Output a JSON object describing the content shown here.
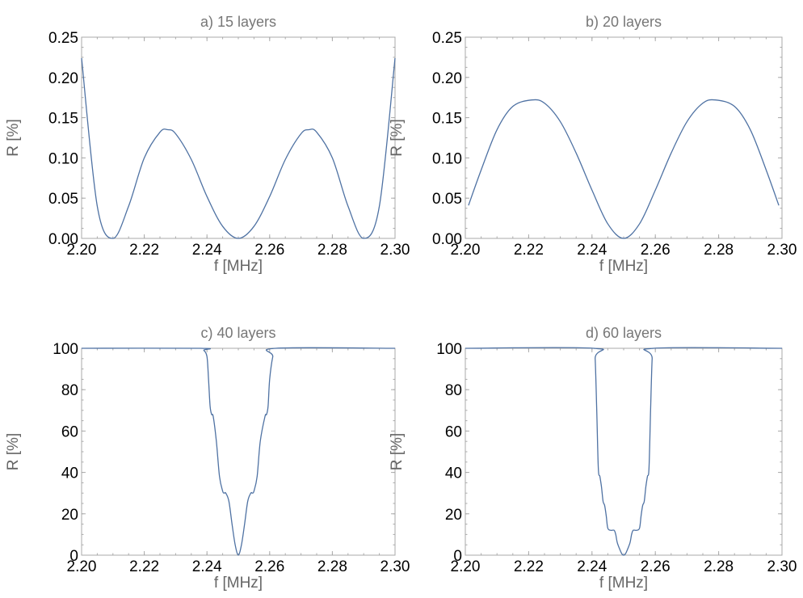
{
  "style": {
    "line_color": "#4f72a3",
    "frame_color": "#aaaaaa",
    "label_color": "#666666"
  },
  "chart_data": [
    {
      "type": "line",
      "title": "a) 15 layers",
      "xlabel": "f [MHz]",
      "ylabel": "R [%]",
      "xlim": [
        2.2,
        2.3
      ],
      "ylim": [
        0,
        0.25
      ],
      "xticks": [
        "2.20",
        "2.22",
        "2.24",
        "2.26",
        "2.28",
        "2.30"
      ],
      "yticks": [
        "0.00",
        "0.05",
        "0.10",
        "0.15",
        "0.20",
        "0.25"
      ],
      "grid": false,
      "series": [
        {
          "x": [
            2.2,
            2.205,
            2.21,
            2.215,
            2.22,
            2.225,
            2.2275,
            2.23,
            2.235,
            2.24,
            2.245,
            2.25,
            2.255,
            2.26,
            2.265,
            2.27,
            2.2725,
            2.275,
            2.28,
            2.285,
            2.29,
            2.295,
            2.3
          ],
          "y": [
            0.224,
            0.04,
            0.0,
            0.04,
            0.1,
            0.132,
            0.135,
            0.13,
            0.098,
            0.052,
            0.015,
            0.0,
            0.015,
            0.052,
            0.098,
            0.13,
            0.135,
            0.132,
            0.1,
            0.04,
            0.0,
            0.04,
            0.224
          ]
        }
      ]
    },
    {
      "type": "line",
      "title": "b) 20 layers",
      "xlabel": "f [MHz]",
      "ylabel": "R [%]",
      "xlim": [
        2.2,
        2.3
      ],
      "ylim": [
        0,
        0.25
      ],
      "xticks": [
        "2.20",
        "2.22",
        "2.24",
        "2.26",
        "2.28",
        "2.30"
      ],
      "yticks": [
        "0.00",
        "0.05",
        "0.10",
        "0.15",
        "0.20",
        "0.25"
      ],
      "grid": false,
      "series": [
        {
          "x": [
            2.201,
            2.205,
            2.21,
            2.215,
            2.221,
            2.225,
            2.23,
            2.235,
            2.24,
            2.245,
            2.25,
            2.255,
            2.26,
            2.265,
            2.27,
            2.275,
            2.279,
            2.285,
            2.29,
            2.295,
            2.299
          ],
          "y": [
            0.041,
            0.085,
            0.135,
            0.164,
            0.172,
            0.168,
            0.145,
            0.106,
            0.06,
            0.018,
            0.0,
            0.018,
            0.06,
            0.106,
            0.145,
            0.168,
            0.172,
            0.164,
            0.135,
            0.085,
            0.041
          ]
        }
      ]
    },
    {
      "type": "line",
      "title": "c) 40 layers",
      "xlabel": "f [MHz]",
      "ylabel": "R [%]",
      "xlim": [
        2.2,
        2.3
      ],
      "ylim": [
        0,
        100
      ],
      "xticks": [
        "2.20",
        "2.22",
        "2.24",
        "2.26",
        "2.28",
        "2.30"
      ],
      "yticks": [
        "0",
        "20",
        "40",
        "60",
        "80",
        "100"
      ],
      "grid": false,
      "series": [
        {
          "x": [
            2.2,
            2.238,
            2.239,
            2.24,
            2.2405,
            2.241,
            2.2415,
            2.242,
            2.243,
            2.244,
            2.245,
            2.2455,
            2.246,
            2.247,
            2.248,
            2.249,
            2.25,
            2.251,
            2.252,
            2.253,
            2.254,
            2.2545,
            2.255,
            2.256,
            2.257,
            2.2585,
            2.259,
            2.2595,
            2.26,
            2.261,
            2.262,
            2.3
          ],
          "y": [
            100,
            100,
            99,
            96,
            85,
            72,
            68,
            67,
            55,
            38,
            31,
            30,
            30,
            26,
            15,
            5,
            0,
            5,
            15,
            26,
            30,
            30,
            31,
            38,
            55,
            67,
            68,
            72,
            85,
            96,
            100,
            100
          ]
        }
      ]
    },
    {
      "type": "line",
      "title": "d) 60 layers",
      "xlabel": "f [MHz]",
      "ylabel": "R [%]",
      "xlim": [
        2.2,
        2.3
      ],
      "ylim": [
        0,
        100
      ],
      "xticks": [
        "2.20",
        "2.22",
        "2.24",
        "2.26",
        "2.28",
        "2.30"
      ],
      "yticks": [
        "0",
        "20",
        "40",
        "60",
        "80",
        "100"
      ],
      "grid": false,
      "series": [
        {
          "x": [
            2.2,
            2.2405,
            2.241,
            2.2415,
            2.242,
            2.2425,
            2.243,
            2.2435,
            2.244,
            2.2445,
            2.245,
            2.246,
            2.247,
            2.2475,
            2.248,
            2.249,
            2.2495,
            2.25,
            2.2505,
            2.251,
            2.252,
            2.2525,
            2.253,
            2.254,
            2.255,
            2.2555,
            2.256,
            2.2565,
            2.257,
            2.2575,
            2.258,
            2.2585,
            2.259,
            2.2595,
            2.3
          ],
          "y": [
            100,
            100,
            95,
            70,
            42,
            38,
            33,
            26,
            24,
            19,
            13,
            12,
            12,
            10,
            6,
            2,
            0.5,
            0,
            0.5,
            2,
            6,
            10,
            12,
            12,
            13,
            19,
            24,
            26,
            33,
            38,
            42,
            70,
            95,
            100,
            100
          ]
        }
      ]
    }
  ]
}
